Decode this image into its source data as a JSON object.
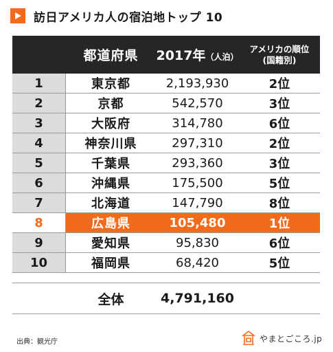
{
  "title": "訪日アメリカ人の宿泊地トップ 10",
  "accent_color": "#f26b1d",
  "header": {
    "prefecture": "都道府県",
    "year": "2017年",
    "year_unit": "（人泊）",
    "rank_line1": "アメリカの順位",
    "rank_line2": "(国籍別)"
  },
  "rows": [
    {
      "rank": "1",
      "prefecture": "東京都",
      "value": "2,193,930",
      "us_rank": "2位"
    },
    {
      "rank": "2",
      "prefecture": "京都",
      "value": "542,570",
      "us_rank": "3位"
    },
    {
      "rank": "3",
      "prefecture": "大阪府",
      "value": "314,780",
      "us_rank": "6位"
    },
    {
      "rank": "4",
      "prefecture": "神奈川県",
      "value": "297,310",
      "us_rank": "2位"
    },
    {
      "rank": "5",
      "prefecture": "千葉県",
      "value": "293,360",
      "us_rank": "3位"
    },
    {
      "rank": "6",
      "prefecture": "沖縄県",
      "value": "175,500",
      "us_rank": "5位"
    },
    {
      "rank": "7",
      "prefecture": "北海道",
      "value": "147,790",
      "us_rank": "8位"
    },
    {
      "rank": "8",
      "prefecture": "広島県",
      "value": "105,480",
      "us_rank": "1位",
      "highlight": true
    },
    {
      "rank": "9",
      "prefecture": "愛知県",
      "value": "95,830",
      "us_rank": "6位"
    },
    {
      "rank": "10",
      "prefecture": "福岡県",
      "value": "68,420",
      "us_rank": "5位"
    }
  ],
  "total": {
    "label": "全体",
    "value": "4,791,160"
  },
  "source": "出典：観光庁",
  "brand": "やまとごころ.jp",
  "icons": {
    "title": "play-icon",
    "brand": "yamatogokoro-logo-icon"
  }
}
